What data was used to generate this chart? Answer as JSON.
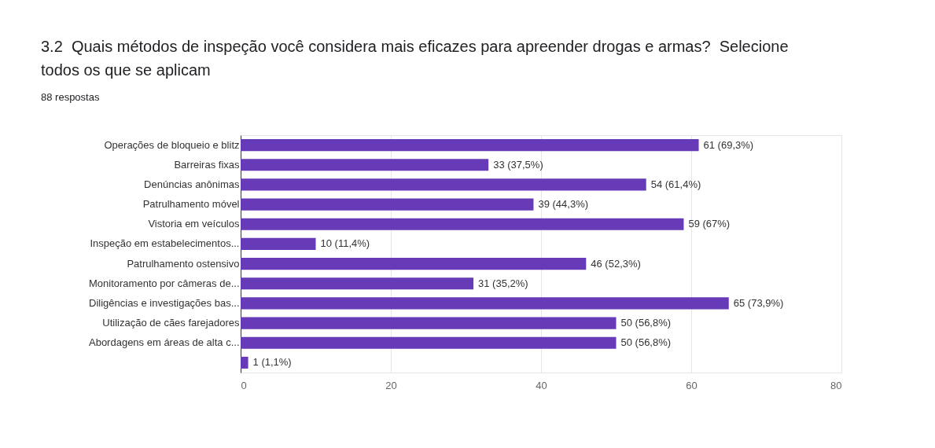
{
  "chart_data": {
    "type": "bar",
    "orientation": "horizontal",
    "title": "3.2  Quais métodos de inspeção você considera mais eficazes para apreender drogas e armas?  Selecione todos os que se aplicam",
    "subtitle": "88 respostas",
    "categories": [
      "Operações de bloqueio e blitz",
      "Barreiras fixas",
      "Denúncias anônimas",
      "Patrulhamento móvel",
      "Vistoria em veículos",
      "Inspeção em estabelecimentos...",
      "Patrulhamento ostensivo",
      "Monitoramento por câmeras de...",
      "Diligências e investigações bas...",
      "Utilização de cães farejadores",
      "Abordagens em áreas de alta c...",
      null
    ],
    "values": [
      61,
      33,
      54,
      39,
      59,
      10,
      46,
      31,
      65,
      50,
      50,
      1
    ],
    "value_labels": [
      "61 (69,3%)",
      "33 (37,5%)",
      "54 (61,4%)",
      "39 (44,3%)",
      "59 (67%)",
      "10 (11,4%)",
      "46 (52,3%)",
      "31 (35,2%)",
      "65 (73,9%)",
      "50 (56,8%)",
      "50 (56,8%)",
      "1 (1,1%)"
    ],
    "color": "#673ab7",
    "xlim": [
      0,
      80
    ],
    "xticks": [
      0,
      20,
      40,
      60,
      80
    ],
    "grid": "x"
  }
}
